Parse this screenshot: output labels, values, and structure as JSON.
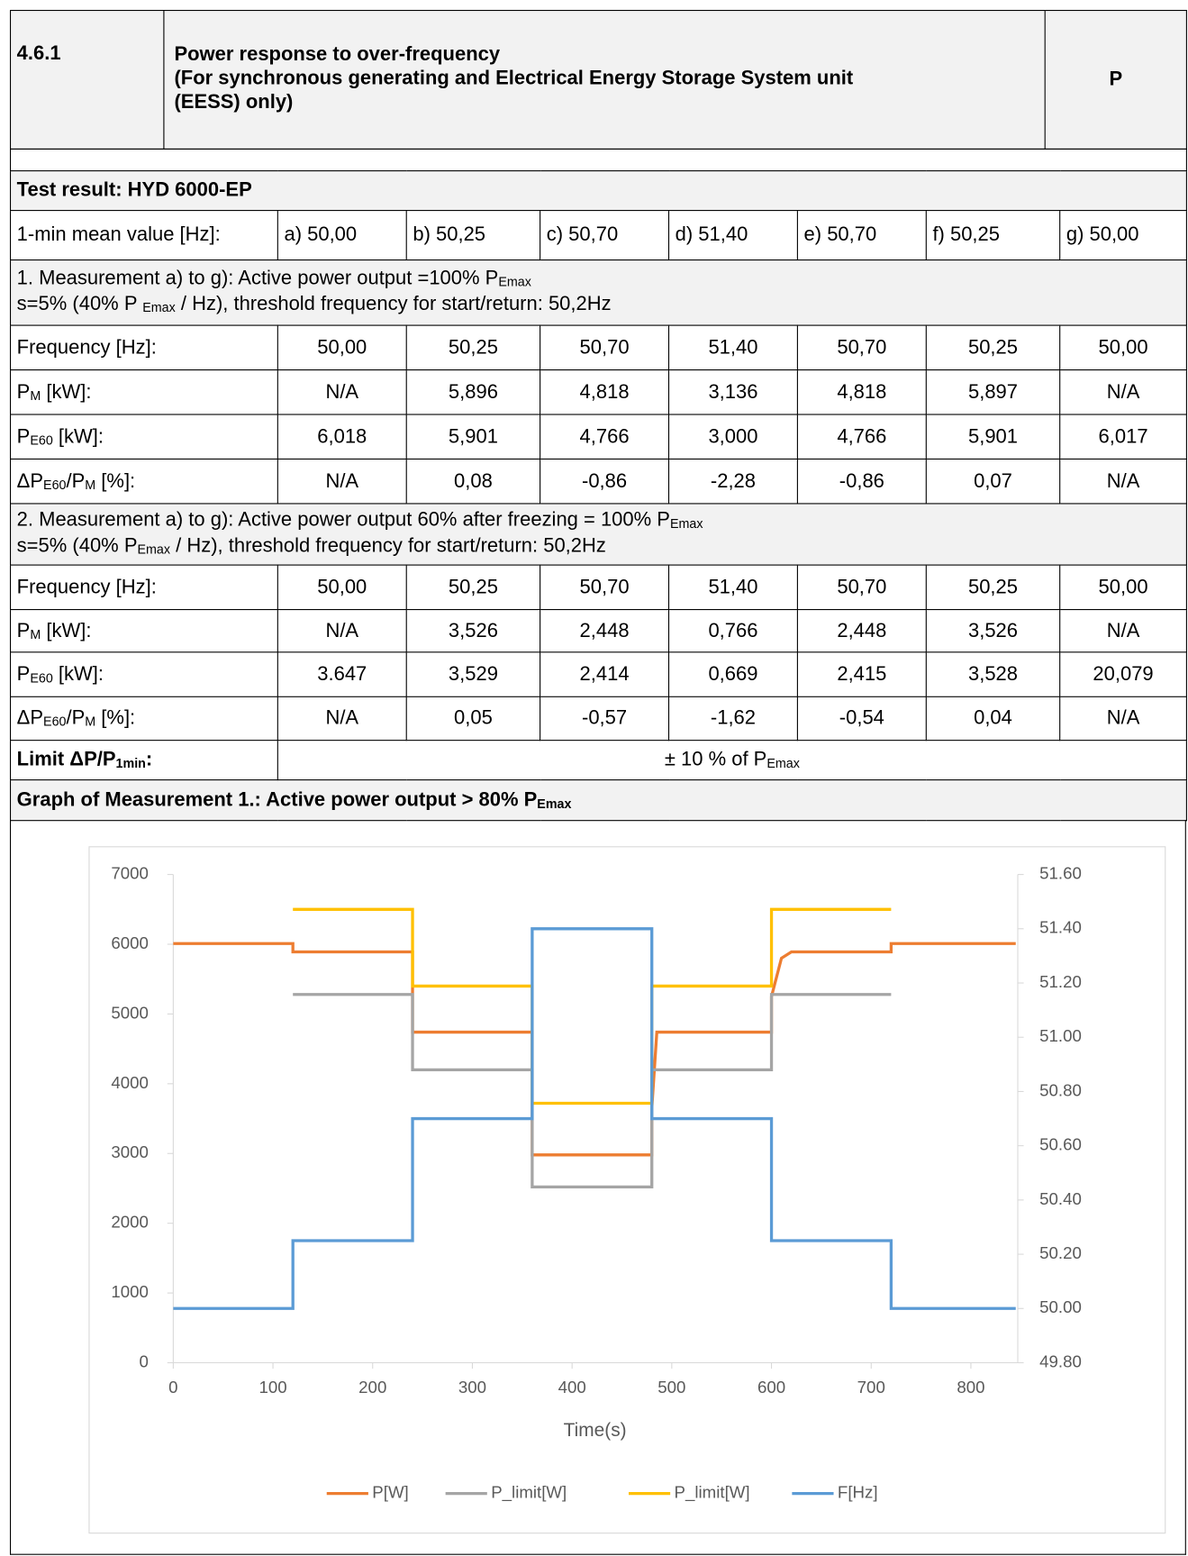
{
  "header": {
    "number": "4.6.1",
    "title_lines": [
      "Power response to over-frequency",
      "(For synchronous generating and Electrical Energy Storage System unit",
      "(EESS) only)"
    ],
    "verdict": "P"
  },
  "table": {
    "title": "Test result: HYD 6000-EP",
    "mean": {
      "label": "1-min mean value [Hz]:",
      "cells": [
        "a) 50,00",
        "b) 50,25",
        "c) 50,70",
        "d) 51,40",
        "e) 50,70",
        "f) 50,25",
        "g) 50,00"
      ]
    },
    "measurements": [
      {
        "desc": [
          [
            "1. Measurement a) to g): Active power output =100% P",
            {
              "sub": "Emax"
            }
          ],
          [
            "s=5% (40% P ",
            {
              "sub": "Emax"
            },
            " / Hz), threshold frequency for start/return: 50,2Hz"
          ]
        ],
        "rows": [
          {
            "label": [
              "Frequency [Hz]:"
            ],
            "cells": [
              "50,00",
              "50,25",
              "50,70",
              "51,40",
              "50,70",
              "50,25",
              "50,00"
            ]
          },
          {
            "label": [
              "P",
              {
                "sub": "M"
              },
              " [kW]:"
            ],
            "cells": [
              "N/A",
              "5,896",
              "4,818",
              "3,136",
              "4,818",
              "5,897",
              "N/A"
            ]
          },
          {
            "label": [
              "P",
              {
                "sub": "E60"
              },
              " [kW]:"
            ],
            "cells": [
              "6,018",
              "5,901",
              "4,766",
              "3,000",
              "4,766",
              "5,901",
              "6,017"
            ]
          },
          {
            "label": [
              "ΔP",
              {
                "sub": "E60"
              },
              "/P",
              {
                "sub": "M"
              },
              " [%]:"
            ],
            "cells": [
              "N/A",
              "0,08",
              "-0,86",
              "-2,28",
              "-0,86",
              "0,07",
              "N/A"
            ]
          }
        ]
      },
      {
        "desc": [
          [
            "2. Measurement a) to g): Active power output 60% after freezing = 100% P",
            {
              "sub": "Emax"
            }
          ],
          [
            "s=5% (40% P",
            {
              "sub": "Emax"
            },
            " / Hz), threshold frequency for start/return: 50,2Hz"
          ]
        ],
        "rows": [
          {
            "label": [
              "Frequency [Hz]:"
            ],
            "cells": [
              "50,00",
              "50,25",
              "50,70",
              "51,40",
              "50,70",
              "50,25",
              "50,00"
            ]
          },
          {
            "label": [
              "P",
              {
                "sub": "M"
              },
              " [kW]:"
            ],
            "cells": [
              "N/A",
              "3,526",
              "2,448",
              "0,766",
              "2,448",
              "3,526",
              "N/A"
            ]
          },
          {
            "label": [
              "P",
              {
                "sub": "E60"
              },
              " [kW]:"
            ],
            "cells": [
              "3.647",
              "3,529",
              "2,414",
              "0,669",
              "2,415",
              "3,528",
              "20,079"
            ]
          },
          {
            "label": [
              "ΔP",
              {
                "sub": "E60"
              },
              "/P",
              {
                "sub": "M"
              },
              " [%]:"
            ],
            "cells": [
              "N/A",
              "0,05",
              "-0,57",
              "-1,62",
              "-0,54",
              "0,04",
              "N/A"
            ]
          }
        ]
      }
    ],
    "limit": {
      "label": [
        {
          "b": "Limit ΔP/P"
        },
        {
          "bsub": "1min"
        },
        {
          "b": ":"
        }
      ],
      "value": [
        "± 10 % of P",
        {
          "sub": "Emax"
        }
      ]
    },
    "graph_title": [
      {
        "b": "Graph of Measurement 1.: Active power output > 80% P"
      },
      {
        "bsub": "Emax"
      }
    ]
  },
  "chart_data": {
    "type": "line",
    "x_label": "Time(s)",
    "xlim": [
      0,
      847
    ],
    "xticks": [
      0,
      100,
      200,
      300,
      400,
      500,
      600,
      700,
      800
    ],
    "ylim": [
      0,
      7000
    ],
    "yticks": [
      0,
      1000,
      2000,
      3000,
      4000,
      5000,
      6000,
      7000
    ],
    "y2lim": [
      49.8,
      51.6
    ],
    "y2ticks": [
      {
        "value": 49.8,
        "label": "49.80"
      },
      {
        "value": 50,
        "label": "50.00"
      },
      {
        "value": 50.2,
        "label": "50.20"
      },
      {
        "value": 50.4,
        "label": "50.40"
      },
      {
        "value": 50.6,
        "label": "50.60"
      },
      {
        "value": 50.8,
        "label": "50.80"
      },
      {
        "value": 51,
        "label": "51.00"
      },
      {
        "value": 51.2,
        "label": "51.20"
      },
      {
        "value": 51.4,
        "label": "51.40"
      },
      {
        "value": 51.6,
        "label": "51.60"
      }
    ],
    "series": [
      {
        "name": "P[W]",
        "color": "#ed7d31",
        "x": [
          0,
          120,
          120,
          240,
          240,
          360,
          360,
          480,
          480,
          485,
          600,
          600,
          610,
          620,
          720,
          720,
          845
        ],
        "values": [
          6010,
          6010,
          5890,
          5890,
          4740,
          4740,
          2980,
          2980,
          3650,
          4740,
          4740,
          5250,
          5800,
          5890,
          5890,
          6010,
          6010
        ]
      },
      {
        "name": "P_limit[W]",
        "color": "#a5a5a5",
        "x": [
          120,
          240,
          240,
          360,
          360,
          480,
          480,
          600,
          600,
          720
        ],
        "values": [
          5280,
          5280,
          4200,
          4200,
          2520,
          2520,
          4200,
          4200,
          5280,
          5280
        ]
      },
      {
        "name": "P_limit[W]",
        "color": "#ffc000",
        "x": [
          120,
          240,
          240,
          360,
          360,
          480,
          480,
          600,
          600,
          720
        ],
        "values": [
          6500,
          6500,
          5400,
          5400,
          3720,
          3720,
          5400,
          5400,
          6500,
          6500
        ]
      },
      {
        "name": "F[Hz]",
        "color": "#5b9bd5",
        "axis": "y2",
        "x": [
          0,
          120,
          120,
          240,
          240,
          360,
          360,
          480,
          480,
          600,
          600,
          720,
          720,
          845
        ],
        "values": [
          50,
          50,
          50.25,
          50.25,
          50.7,
          50.7,
          51.4,
          51.4,
          50.7,
          50.7,
          50.25,
          50.25,
          50,
          50
        ]
      }
    ]
  }
}
